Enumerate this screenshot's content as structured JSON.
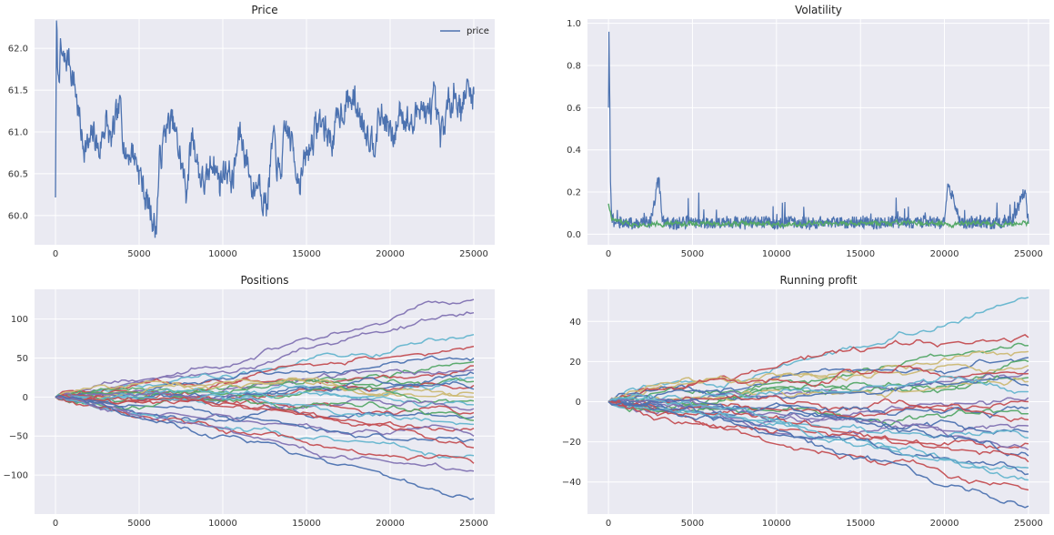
{
  "figure": {
    "background": "#ffffff",
    "axes_background": "#eaeaf2",
    "grid_color": "#ffffff"
  },
  "palette": [
    "#4c72b0",
    "#55a868",
    "#c44e52",
    "#8172b2",
    "#ccb974",
    "#64b5cd"
  ],
  "chart_data": [
    {
      "type": "line",
      "title": "Price",
      "xlabel": "",
      "ylabel": "",
      "xlim": [
        -1250,
        26250
      ],
      "ylim": [
        59.65,
        62.35
      ],
      "xticks": [
        0,
        5000,
        10000,
        15000,
        20000,
        25000
      ],
      "yticks": [
        60.0,
        60.5,
        61.0,
        61.5,
        62.0
      ],
      "ytick_labels": [
        "60.0",
        "60.5",
        "61.0",
        "61.5",
        "62.0"
      ],
      "grid": true,
      "legend": {
        "position": "top-right",
        "entries": [
          "price"
        ]
      },
      "series": [
        {
          "name": "price",
          "color": "#4c72b0",
          "x": [
            0,
            60,
            150,
            300,
            500,
            800,
            1200,
            1600,
            2000,
            2300,
            2600,
            3000,
            3300,
            3600,
            3900,
            4200,
            4600,
            5000,
            5400,
            5800,
            6000,
            6200,
            6600,
            7000,
            7400,
            7800,
            8200,
            8600,
            9000,
            9400,
            9800,
            10200,
            10600,
            11000,
            11400,
            11800,
            12200,
            12600,
            13000,
            13400,
            13800,
            14200,
            14600,
            15000,
            15400,
            15800,
            16200,
            16600,
            17000,
            17400,
            17800,
            18200,
            18600,
            19000,
            19400,
            19800,
            20200,
            20600,
            21000,
            21400,
            21800,
            22200,
            22600,
            23000,
            23400,
            23800,
            24200,
            24600,
            25000
          ],
          "y": [
            60.3,
            62.25,
            61.6,
            61.95,
            61.8,
            61.9,
            61.5,
            60.9,
            60.8,
            61.0,
            60.75,
            61.15,
            60.85,
            61.1,
            61.3,
            60.7,
            60.8,
            60.55,
            60.2,
            60.0,
            59.8,
            60.6,
            61.05,
            61.1,
            60.75,
            60.3,
            61.0,
            60.5,
            60.35,
            60.7,
            60.4,
            60.6,
            60.4,
            61.0,
            60.7,
            60.3,
            60.45,
            60.1,
            60.9,
            60.45,
            61.05,
            60.8,
            60.4,
            60.7,
            60.95,
            61.15,
            61.0,
            60.9,
            61.25,
            61.35,
            61.4,
            61.2,
            61.05,
            60.9,
            61.2,
            61.1,
            60.85,
            61.3,
            61.15,
            61.05,
            61.4,
            61.15,
            61.35,
            60.9,
            61.25,
            61.5,
            61.3,
            61.5,
            61.45
          ]
        }
      ]
    },
    {
      "type": "line",
      "title": "Volatility",
      "xlabel": "",
      "ylabel": "",
      "xlim": [
        -1250,
        26250
      ],
      "ylim": [
        -0.05,
        1.02
      ],
      "xticks": [
        0,
        5000,
        10000,
        15000,
        20000,
        25000
      ],
      "yticks": [
        0.0,
        0.2,
        0.4,
        0.6,
        0.8,
        1.0
      ],
      "ytick_labels": [
        "0.0",
        "0.2",
        "0.4",
        "0.6",
        "0.8",
        "1.0"
      ],
      "grid": true,
      "series": [
        {
          "color": "#4c72b0",
          "x": [
            0,
            30,
            80,
            120,
            200,
            400,
            800,
            1500,
            2500,
            3000,
            3200,
            4000,
            5000,
            6000,
            7000,
            8000,
            9000,
            10000,
            11000,
            12000,
            13000,
            14000,
            15000,
            16000,
            17000,
            18000,
            19000,
            20000,
            20200,
            21000,
            22000,
            23000,
            24000,
            24800,
            25000
          ],
          "y": [
            0.6,
            0.96,
            0.62,
            0.25,
            0.08,
            0.05,
            0.06,
            0.05,
            0.06,
            0.27,
            0.06,
            0.05,
            0.06,
            0.05,
            0.06,
            0.05,
            0.06,
            0.05,
            0.06,
            0.05,
            0.06,
            0.05,
            0.06,
            0.05,
            0.06,
            0.05,
            0.06,
            0.05,
            0.24,
            0.05,
            0.06,
            0.05,
            0.06,
            0.21,
            0.05
          ]
        },
        {
          "color": "#55a868",
          "x": [
            0,
            200,
            1000,
            5000,
            10000,
            15000,
            20000,
            25000
          ],
          "y": [
            0.15,
            0.07,
            0.05,
            0.05,
            0.05,
            0.05,
            0.05,
            0.05
          ]
        }
      ]
    },
    {
      "type": "line",
      "title": "Positions",
      "xlabel": "",
      "ylabel": "",
      "xlim": [
        -1250,
        26250
      ],
      "ylim": [
        -150,
        138
      ],
      "xticks": [
        0,
        5000,
        10000,
        15000,
        20000,
        25000
      ],
      "yticks": [
        -100,
        -50,
        0,
        50,
        100
      ],
      "ytick_labels": [
        "−100",
        "−50",
        "0",
        "50",
        "100"
      ],
      "grid": true,
      "series": [
        {
          "color": "#8172b2",
          "end": 125
        },
        {
          "color": "#8172b2",
          "end": 108
        },
        {
          "color": "#64b5cd",
          "end": 80
        },
        {
          "color": "#c44e52",
          "end": 65
        },
        {
          "color": "#4c72b0",
          "end": 50
        },
        {
          "color": "#55a868",
          "end": 45
        },
        {
          "color": "#c44e52",
          "end": 40
        },
        {
          "color": "#8172b2",
          "end": 35
        },
        {
          "color": "#4c72b0",
          "end": 30
        },
        {
          "color": "#64b5cd",
          "end": 25
        },
        {
          "color": "#55a868",
          "end": 20
        },
        {
          "color": "#c44e52",
          "end": 15
        },
        {
          "color": "#4c72b0",
          "end": 10
        },
        {
          "color": "#ccb974",
          "end": 5
        },
        {
          "color": "#ccb974",
          "end": 0
        },
        {
          "color": "#55a868",
          "end": -5
        },
        {
          "color": "#64b5cd",
          "end": -10
        },
        {
          "color": "#8172b2",
          "end": -15
        },
        {
          "color": "#c44e52",
          "end": -20
        },
        {
          "color": "#4c72b0",
          "end": -25
        },
        {
          "color": "#55a868",
          "end": -30
        },
        {
          "color": "#64b5cd",
          "end": -35
        },
        {
          "color": "#c44e52",
          "end": -40
        },
        {
          "color": "#8172b2",
          "end": -50
        },
        {
          "color": "#4c72b0",
          "end": -55
        },
        {
          "color": "#c44e52",
          "end": -65
        },
        {
          "color": "#64b5cd",
          "end": -75
        },
        {
          "color": "#c44e52",
          "end": -85
        },
        {
          "color": "#8172b2",
          "end": -95
        },
        {
          "color": "#4c72b0",
          "end": -130
        }
      ]
    },
    {
      "type": "line",
      "title": "Running profit",
      "xlabel": "",
      "ylabel": "",
      "xlim": [
        -1250,
        26250
      ],
      "ylim": [
        -56,
        56
      ],
      "xticks": [
        0,
        5000,
        10000,
        15000,
        20000,
        25000
      ],
      "yticks": [
        -40,
        -20,
        0,
        20,
        40
      ],
      "ytick_labels": [
        "−40",
        "−20",
        "0",
        "20",
        "40"
      ],
      "grid": true,
      "series": [
        {
          "color": "#64b5cd",
          "end": 52
        },
        {
          "color": "#c44e52",
          "end": 32
        },
        {
          "color": "#55a868",
          "end": 28
        },
        {
          "color": "#ccb974",
          "end": 25
        },
        {
          "color": "#4c72b0",
          "end": 22
        },
        {
          "color": "#55a868",
          "end": 20
        },
        {
          "color": "#ccb974",
          "end": 18
        },
        {
          "color": "#8172b2",
          "end": 16
        },
        {
          "color": "#c44e52",
          "end": 14
        },
        {
          "color": "#55a868",
          "end": 12
        },
        {
          "color": "#ccb974",
          "end": 10
        },
        {
          "color": "#4c72b0",
          "end": 8
        },
        {
          "color": "#64b5cd",
          "end": 5
        },
        {
          "color": "#8172b2",
          "end": 2
        },
        {
          "color": "#c44e52",
          "end": 0
        },
        {
          "color": "#4c72b0",
          "end": -3
        },
        {
          "color": "#55a868",
          "end": -6
        },
        {
          "color": "#c44e52",
          "end": -9
        },
        {
          "color": "#8172b2",
          "end": -12
        },
        {
          "color": "#4c72b0",
          "end": -15
        },
        {
          "color": "#64b5cd",
          "end": -18
        },
        {
          "color": "#c44e52",
          "end": -21
        },
        {
          "color": "#8172b2",
          "end": -24
        },
        {
          "color": "#4c72b0",
          "end": -27
        },
        {
          "color": "#c44e52",
          "end": -30
        },
        {
          "color": "#64b5cd",
          "end": -33
        },
        {
          "color": "#4c72b0",
          "end": -36
        },
        {
          "color": "#64b5cd",
          "end": -39
        },
        {
          "color": "#c44e52",
          "end": -44
        },
        {
          "color": "#4c72b0",
          "end": -52
        }
      ]
    }
  ]
}
